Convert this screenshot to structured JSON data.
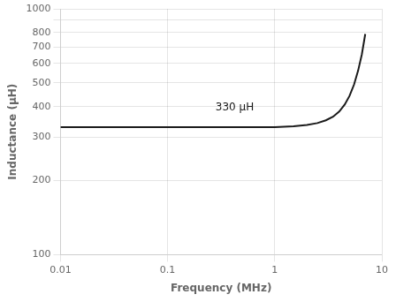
{
  "chart_data": {
    "type": "line",
    "xlabel": "Frequency (MHz)",
    "ylabel": "Inductance (μH)",
    "x": [
      0.01,
      0.02,
      0.05,
      0.1,
      0.2,
      0.5,
      1.0,
      1.5,
      2.0,
      2.5,
      3.0,
      3.5,
      4.0,
      4.5,
      5.0,
      5.5,
      6.0,
      6.5,
      7.0
    ],
    "values": [
      330,
      330,
      330,
      330,
      330,
      330,
      330,
      333,
      337,
      343,
      352,
      364,
      382,
      408,
      443,
      492,
      560,
      652,
      790
    ],
    "color": "#1a1a1a",
    "log": true,
    "grid": true,
    "xlim": [
      0.01,
      10
    ],
    "ylim": [
      100,
      1000
    ],
    "xticks": [
      0.01,
      0.1,
      1,
      10
    ],
    "yticks": [
      100,
      200,
      300,
      400,
      500,
      600,
      700,
      800,
      {
        "value": 900,
        "label": ""
      },
      1000
    ],
    "annotations": [
      {
        "text": "330 μH",
        "x": 0.28,
        "y": 378
      }
    ]
  }
}
